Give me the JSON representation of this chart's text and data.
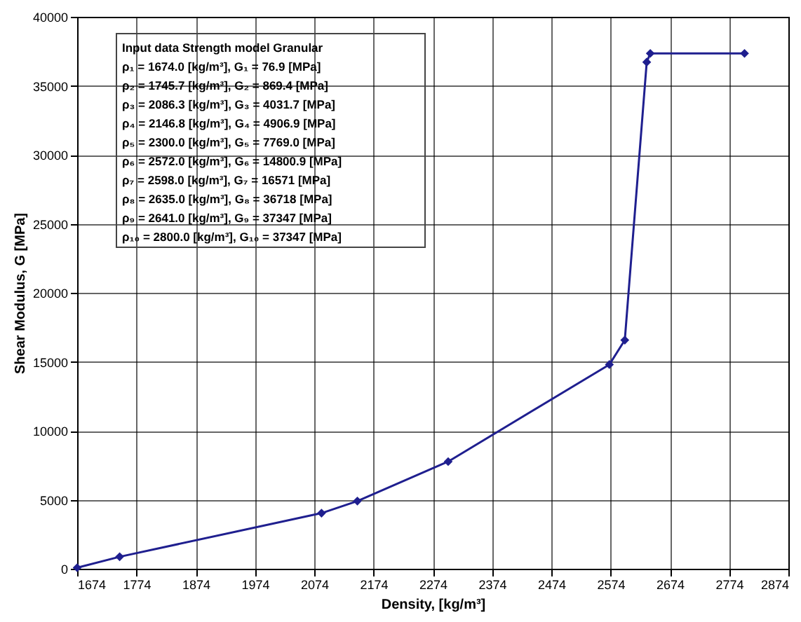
{
  "chart_data": {
    "type": "line",
    "xlabel": "Density, [kg/m³]",
    "ylabel": "Shear Modulus, G [MPa]",
    "x": [
      1674.0,
      1745.7,
      2086.3,
      2146.8,
      2300.0,
      2572.0,
      2598.0,
      2635.0,
      2641.0,
      2800.0
    ],
    "series": [
      {
        "color": "#1f1f8f",
        "values": [
          76.9,
          869.4,
          4031.7,
          4906.9,
          7769.0,
          14800.9,
          16571,
          36718,
          37347,
          37347
        ]
      }
    ],
    "xlim": [
      1674,
      2874
    ],
    "xticks": [
      1674,
      1774,
      1874,
      1974,
      2074,
      2174,
      2274,
      2374,
      2474,
      2574,
      2674,
      2774,
      2874
    ],
    "ylim": [
      0,
      40000
    ],
    "yticks": [
      0,
      5000,
      10000,
      15000,
      20000,
      25000,
      30000,
      35000,
      40000
    ],
    "grid": true,
    "marker": "diamond",
    "line_style": "solid",
    "annotations": [
      "Input data Strength model Granular",
      "ρ₁ = 1674.0 [kg/m³], G₁ = 76.9 [MPa]",
      "ρ₂ = 1745.7 [kg/m³], G₂ = 869.4 [MPa]",
      "ρ₃ = 2086.3 [kg/m³], G₃ = 4031.7 [MPa]",
      "ρ₄ = 2146.8 [kg/m³], G₄ = 4906.9 [MPa]",
      "ρ₅ = 2300.0 [kg/m³], G₅ = 7769.0 [MPa]",
      "ρ₆ = 2572.0 [kg/m³], G₆ = 14800.9 [MPa]",
      "ρ₇ = 2598.0 [kg/m³], G₇ = 16571 [MPa]",
      "ρ₈ = 2635.0 [kg/m³], G₈ = 36718 [MPa]",
      "ρ₉ = 2641.0 [kg/m³], G₉ = 37347 [MPa]",
      "ρ₁₀ = 2800.0 [kg/m³], G₁₀ = 37347 [MPa]"
    ]
  }
}
